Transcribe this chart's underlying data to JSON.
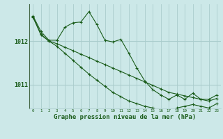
{
  "background_color": "#cce8e8",
  "grid_color": "#aacccc",
  "line_color": "#1a5c1a",
  "xlabel": "Graphe pression niveau de la mer (hPa)",
  "xlabel_fontsize": 6.5,
  "yticks": [
    1011,
    1012
  ],
  "ylim": [
    1010.45,
    1012.85
  ],
  "xlim": [
    -0.5,
    23.5
  ],
  "xticks": [
    0,
    1,
    2,
    3,
    4,
    5,
    6,
    7,
    8,
    9,
    10,
    11,
    12,
    13,
    14,
    15,
    16,
    17,
    18,
    19,
    20,
    21,
    22,
    23
  ],
  "series1": [
    1012.58,
    1012.22,
    1012.02,
    1012.02,
    1012.32,
    1012.42,
    1012.44,
    1012.68,
    1012.38,
    1012.02,
    1011.98,
    1012.04,
    1011.72,
    1011.38,
    1011.08,
    1010.88,
    1010.76,
    1010.66,
    1010.76,
    1010.66,
    1010.8,
    1010.66,
    1010.66,
    1010.76
  ],
  "series2": [
    1012.55,
    1012.14,
    1012.0,
    1011.88,
    1011.72,
    1011.56,
    1011.4,
    1011.24,
    1011.1,
    1010.96,
    1010.82,
    1010.72,
    1010.62,
    1010.56,
    1010.5,
    1010.46,
    1010.4,
    1010.36,
    1010.46,
    1010.5,
    1010.54,
    1010.5,
    1010.46,
    1010.56
  ],
  "series3": [
    1012.56,
    1012.16,
    1012.0,
    1011.94,
    1011.86,
    1011.78,
    1011.7,
    1011.62,
    1011.54,
    1011.46,
    1011.38,
    1011.3,
    1011.22,
    1011.14,
    1011.06,
    1010.98,
    1010.9,
    1010.82,
    1010.78,
    1010.74,
    1010.7,
    1010.66,
    1010.62,
    1010.68
  ]
}
